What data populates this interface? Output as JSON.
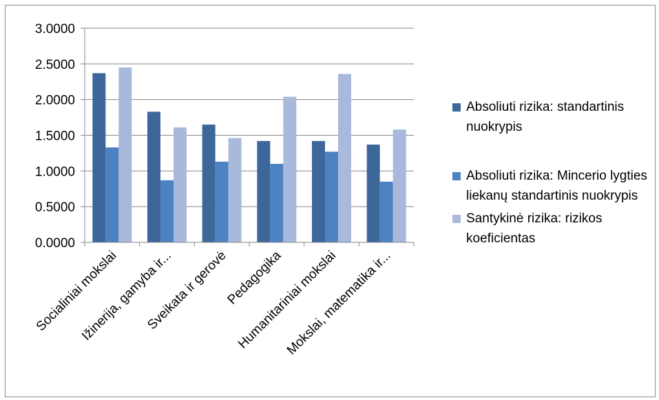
{
  "chart_data": {
    "type": "bar",
    "title": "",
    "xlabel": "",
    "ylabel": "",
    "ylim": [
      0,
      3
    ],
    "yticks": [
      "0.0000",
      "0.5000",
      "1.0000",
      "1.5000",
      "2.0000",
      "2.5000",
      "3.0000"
    ],
    "grid": "horizontal",
    "legend_position": "right",
    "categories": [
      "Socialiniai mokslai",
      "Ižinerija, gamyba ir...",
      "Sveikata ir gerovė",
      "Pedagogika",
      "Humanitariniai mokslai",
      "Mokslai, matematika ir..."
    ],
    "series": [
      {
        "name": "Absoliuti rizika: standartinis nuokrypis",
        "color": "#3d679b",
        "values": [
          2.37,
          1.83,
          1.65,
          1.42,
          1.42,
          1.37
        ]
      },
      {
        "name": "Absoliuti rizika: Mincerio lygties liekanų standartinis nuokrypis",
        "color": "#4d82c2",
        "values": [
          1.33,
          0.87,
          1.13,
          1.1,
          1.27,
          0.85
        ]
      },
      {
        "name": "Santykinė rizika: rizikos koeficientas",
        "color": "#a8b9dc",
        "values": [
          2.45,
          1.61,
          1.46,
          2.04,
          2.36,
          1.58
        ]
      }
    ]
  }
}
